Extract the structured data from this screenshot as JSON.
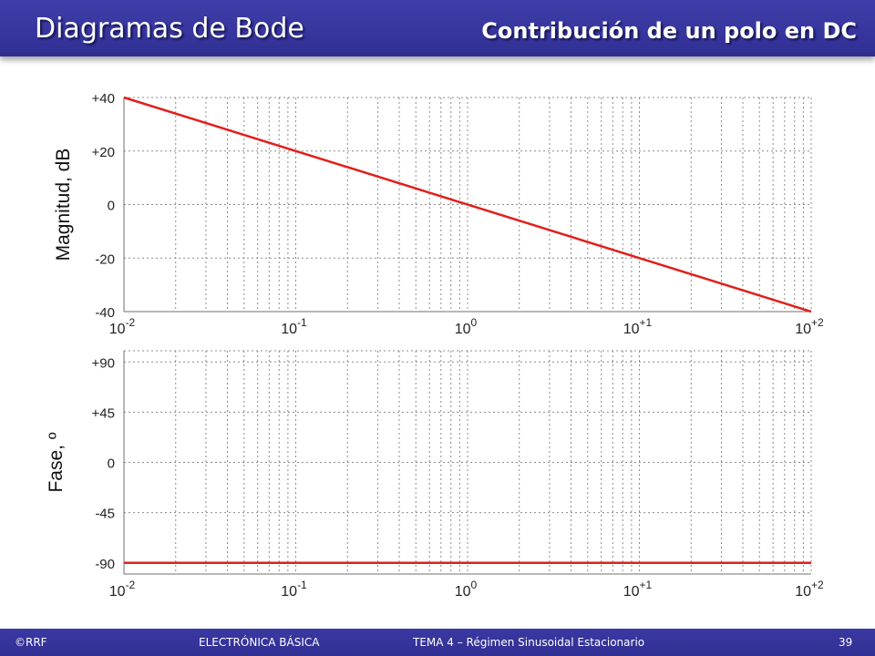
{
  "header": {
    "title": "Diagramas de Bode",
    "subtitle": "Contribución de un polo en DC"
  },
  "footer": {
    "copyright": "©RRF",
    "course": "ELECTRÓNICA BÁSICA",
    "topic": "TEMA 4 – Régimen Sinusoidal Estacionario",
    "page_number": "39"
  },
  "colors": {
    "header_blue": "#35349c",
    "curve_red": "#e0201c",
    "grid": "#8c8c8c"
  },
  "chart_data": [
    {
      "type": "line",
      "ylabel": "Magnitud, dB",
      "xscale": "log",
      "xlim": [
        0.01,
        100
      ],
      "ylim": [
        -40,
        40
      ],
      "x_tick_labels": [
        {
          "base": "10",
          "exp": "-2"
        },
        {
          "base": "10",
          "exp": "-1"
        },
        {
          "base": "10",
          "exp": "0"
        },
        {
          "base": "10",
          "exp": "+1"
        },
        {
          "base": "10",
          "exp": "+2"
        }
      ],
      "y_tick_labels": [
        "+40",
        "+20",
        "0",
        "-20",
        "-40"
      ],
      "grid": true,
      "series": [
        {
          "x": [
            0.01,
            100
          ],
          "y": [
            40,
            -40
          ]
        }
      ]
    },
    {
      "type": "line",
      "ylabel": "Fase, º",
      "xscale": "log",
      "xlim": [
        0.01,
        100
      ],
      "ylim": [
        -100,
        100
      ],
      "x_tick_labels": [
        {
          "base": "10",
          "exp": "-2"
        },
        {
          "base": "10",
          "exp": "-1"
        },
        {
          "base": "10",
          "exp": "0"
        },
        {
          "base": "10",
          "exp": "+1"
        },
        {
          "base": "10",
          "exp": "+2"
        }
      ],
      "y_tick_labels": [
        "+90",
        "+45",
        "0",
        "-45",
        "-90"
      ],
      "grid": true,
      "series": [
        {
          "x": [
            0.01,
            100
          ],
          "y": [
            -90,
            -90
          ]
        }
      ]
    }
  ]
}
